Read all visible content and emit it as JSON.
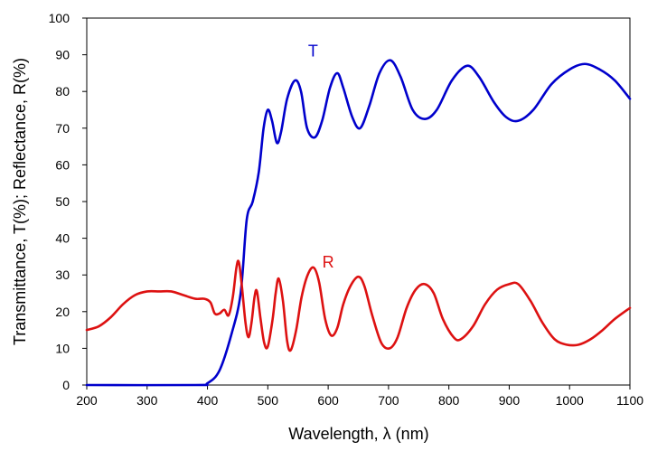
{
  "chart_data": {
    "type": "line",
    "title": "",
    "xlabel": "Wavelength, λ (nm)",
    "ylabel": "Transmittance, T(%); Reflectance, R(%)",
    "xlim": [
      200,
      1100
    ],
    "ylim": [
      0,
      100
    ],
    "xticks": [
      200,
      300,
      400,
      500,
      600,
      700,
      800,
      900,
      1000,
      1100
    ],
    "yticks": [
      0,
      10,
      20,
      30,
      40,
      50,
      60,
      70,
      80,
      90,
      100
    ],
    "grid": false,
    "legend": "none",
    "series": [
      {
        "name": "T",
        "color": "#0000cc",
        "label_at": [
          575,
          91
        ],
        "points": [
          [
            200,
            0
          ],
          [
            380,
            0
          ],
          [
            400,
            0.5
          ],
          [
            420,
            4
          ],
          [
            440,
            14
          ],
          [
            455,
            25
          ],
          [
            465,
            45
          ],
          [
            475,
            50
          ],
          [
            485,
            58
          ],
          [
            493,
            70
          ],
          [
            500,
            75
          ],
          [
            507,
            72
          ],
          [
            515,
            66
          ],
          [
            522,
            69
          ],
          [
            532,
            78
          ],
          [
            545,
            83
          ],
          [
            555,
            80
          ],
          [
            565,
            70
          ],
          [
            578,
            67.5
          ],
          [
            590,
            72
          ],
          [
            603,
            81
          ],
          [
            615,
            85
          ],
          [
            625,
            81
          ],
          [
            640,
            73
          ],
          [
            653,
            70
          ],
          [
            668,
            76
          ],
          [
            685,
            85
          ],
          [
            703,
            88.5
          ],
          [
            720,
            84
          ],
          [
            740,
            75
          ],
          [
            760,
            72.5
          ],
          [
            780,
            75
          ],
          [
            805,
            83
          ],
          [
            830,
            87
          ],
          [
            850,
            84
          ],
          [
            875,
            77
          ],
          [
            895,
            73
          ],
          [
            915,
            72
          ],
          [
            940,
            75
          ],
          [
            970,
            82
          ],
          [
            1000,
            86
          ],
          [
            1025,
            87.5
          ],
          [
            1050,
            86
          ],
          [
            1075,
            83
          ],
          [
            1100,
            78
          ]
        ]
      },
      {
        "name": "R",
        "color": "#dd1111",
        "label_at": [
          600,
          33.5
        ],
        "points": [
          [
            200,
            15
          ],
          [
            220,
            16
          ],
          [
            240,
            18.5
          ],
          [
            260,
            22
          ],
          [
            280,
            24.5
          ],
          [
            300,
            25.5
          ],
          [
            320,
            25.5
          ],
          [
            340,
            25.5
          ],
          [
            360,
            24.5
          ],
          [
            380,
            23.5
          ],
          [
            395,
            23.5
          ],
          [
            405,
            22.5
          ],
          [
            412,
            19.5
          ],
          [
            420,
            19.5
          ],
          [
            428,
            20.5
          ],
          [
            435,
            19
          ],
          [
            442,
            24
          ],
          [
            448,
            32
          ],
          [
            452,
            33.5
          ],
          [
            457,
            27
          ],
          [
            463,
            17
          ],
          [
            468,
            13
          ],
          [
            473,
            17
          ],
          [
            478,
            24
          ],
          [
            482,
            25.5
          ],
          [
            488,
            18
          ],
          [
            494,
            11.5
          ],
          [
            500,
            10.5
          ],
          [
            508,
            18
          ],
          [
            513,
            25
          ],
          [
            518,
            29
          ],
          [
            525,
            23
          ],
          [
            532,
            12
          ],
          [
            538,
            9.5
          ],
          [
            547,
            15
          ],
          [
            556,
            24
          ],
          [
            566,
            30
          ],
          [
            576,
            32
          ],
          [
            585,
            28
          ],
          [
            595,
            18
          ],
          [
            605,
            13.5
          ],
          [
            615,
            15.5
          ],
          [
            625,
            22
          ],
          [
            637,
            27
          ],
          [
            650,
            29.5
          ],
          [
            660,
            27
          ],
          [
            673,
            19
          ],
          [
            688,
            11.5
          ],
          [
            702,
            10
          ],
          [
            715,
            13
          ],
          [
            730,
            21
          ],
          [
            745,
            26
          ],
          [
            760,
            27.5
          ],
          [
            775,
            25
          ],
          [
            790,
            18
          ],
          [
            808,
            13
          ],
          [
            820,
            12.5
          ],
          [
            840,
            16
          ],
          [
            860,
            22
          ],
          [
            880,
            26
          ],
          [
            900,
            27.5
          ],
          [
            915,
            27.5
          ],
          [
            935,
            23
          ],
          [
            955,
            17
          ],
          [
            975,
            12.5
          ],
          [
            995,
            11
          ],
          [
            1015,
            11
          ],
          [
            1035,
            12.5
          ],
          [
            1055,
            15
          ],
          [
            1075,
            18
          ],
          [
            1100,
            21
          ]
        ]
      }
    ]
  }
}
